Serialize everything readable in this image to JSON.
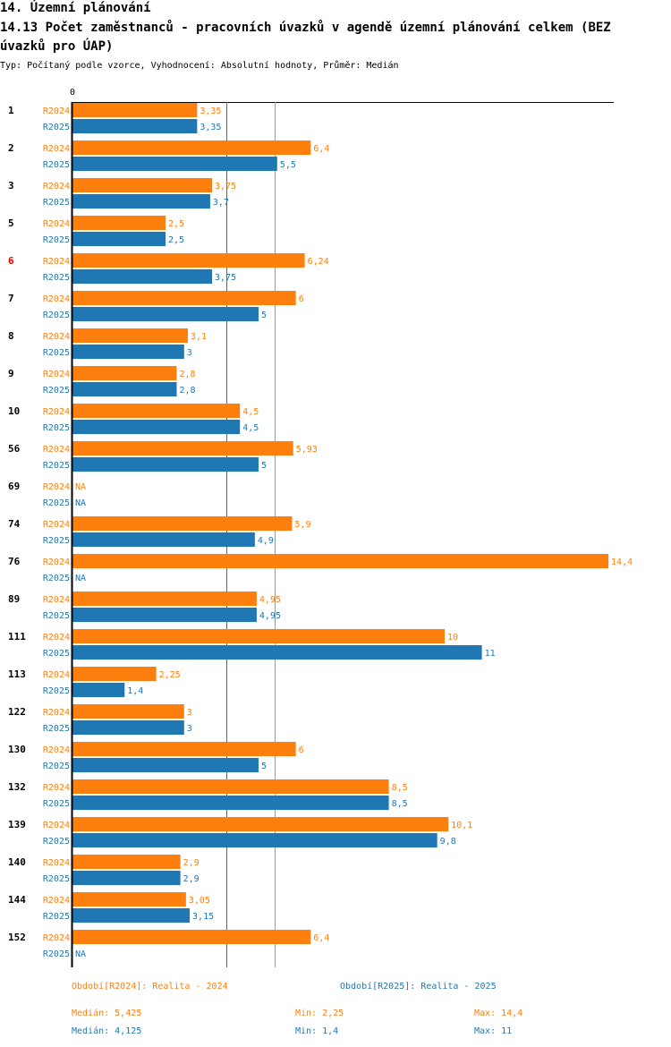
{
  "header": {
    "title": "14. Územní plánování",
    "subtitle": "14.13 Počet zaměstnanců - pracovních úvazků v agendě územní plánování celkem (BEZ úvazků pro ÚAP)",
    "meta": "Typ: Počítaný podle vzorce, Vyhodnocení: Absolutní hodnoty, Průměr: Medián"
  },
  "colors": {
    "r2024": "#ff7f0e",
    "r2025": "#1f77b4",
    "highlight": "#e00000",
    "axis": "#000000"
  },
  "chart_data": {
    "type": "bar",
    "orientation": "horizontal",
    "axis_zero_label": "0",
    "xlim": [
      0,
      14.4
    ],
    "series_names": [
      "R2024",
      "R2025"
    ],
    "na_label": "NA",
    "highlight_category": "6",
    "categories": [
      "1",
      "2",
      "3",
      "5",
      "6",
      "7",
      "8",
      "9",
      "10",
      "56",
      "69",
      "74",
      "76",
      "89",
      "111",
      "113",
      "122",
      "130",
      "132",
      "139",
      "140",
      "144",
      "152"
    ],
    "series": [
      {
        "name": "R2024",
        "values": [
          3.35,
          6.4,
          3.75,
          2.5,
          6.24,
          6,
          3.1,
          2.8,
          4.5,
          5.93,
          null,
          5.9,
          14.4,
          4.95,
          10,
          2.25,
          3,
          6,
          8.5,
          10.1,
          2.9,
          3.05,
          6.4
        ],
        "labels": [
          "3,35",
          "6,4",
          "3,75",
          "2,5",
          "6,24",
          "6",
          "3,1",
          "2,8",
          "4,5",
          "5,93",
          "NA",
          "5,9",
          "14,4",
          "4,95",
          "10",
          "2,25",
          "3",
          "6",
          "8,5",
          "10,1",
          "2,9",
          "3,05",
          "6,4"
        ]
      },
      {
        "name": "R2025",
        "values": [
          3.35,
          5.5,
          3.7,
          2.5,
          3.75,
          5,
          3,
          2.8,
          4.5,
          5,
          null,
          4.9,
          null,
          4.95,
          11,
          1.4,
          3,
          5,
          8.5,
          9.8,
          2.9,
          3.15,
          null
        ],
        "labels": [
          "3,35",
          "5,5",
          "3,7",
          "2,5",
          "3,75",
          "5",
          "3",
          "2,8",
          "4,5",
          "5",
          "NA",
          "4,9",
          "NA",
          "4,95",
          "11",
          "1,4",
          "3",
          "5",
          "8,5",
          "9,8",
          "2,9",
          "3,15",
          "NA"
        ]
      }
    ],
    "reference_lines": [
      {
        "series": "R2024",
        "stat": "Medián",
        "value": 5.425
      },
      {
        "series": "R2025",
        "stat": "Medián",
        "value": 4.125
      }
    ]
  },
  "legend": {
    "r2024": "Období[R2024]: Realita - 2024",
    "r2025": "Období[R2025]: Realita - 2025"
  },
  "stats": {
    "r2024": {
      "median": "Medián: 5,425",
      "min": "Min: 2,25",
      "max": "Max: 14,4"
    },
    "r2025": {
      "median": "Medián: 4,125",
      "min": "Min: 1,4",
      "max": "Max: 11"
    }
  }
}
